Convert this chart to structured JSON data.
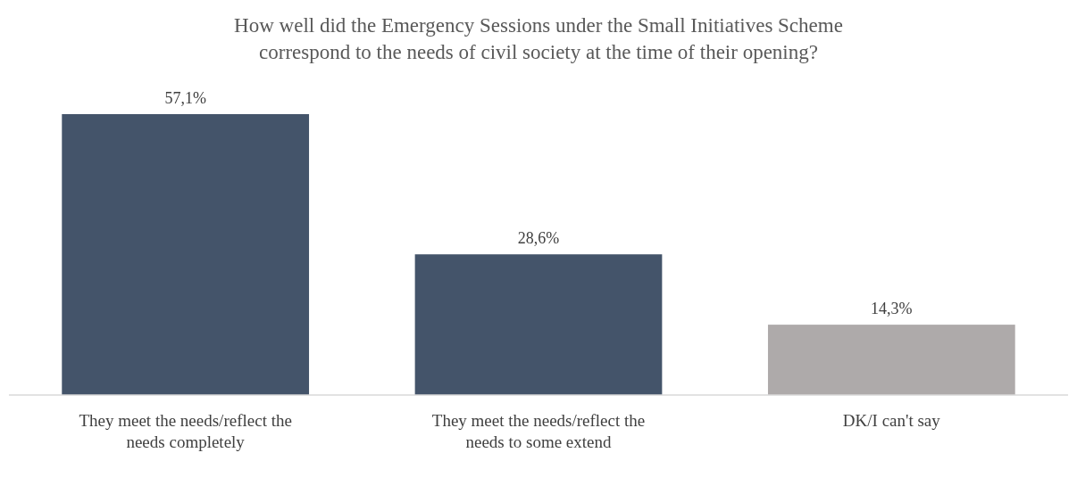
{
  "chart_data": {
    "type": "bar",
    "title": "How well did the Emergency Sessions under the Small Initiatives Scheme correspond to the needs of civil society at the time of their opening?",
    "categories": [
      "They meet the needs/reflect the needs completely",
      "They meet the needs/reflect the needs to some extend",
      "DK/I can't say"
    ],
    "values": [
      57.1,
      28.6,
      14.3
    ],
    "colors": [
      "#44546a",
      "#44546a",
      "#aeaaaa"
    ],
    "value_labels": [
      "57,1%",
      "28,6%",
      "14,3%"
    ]
  }
}
